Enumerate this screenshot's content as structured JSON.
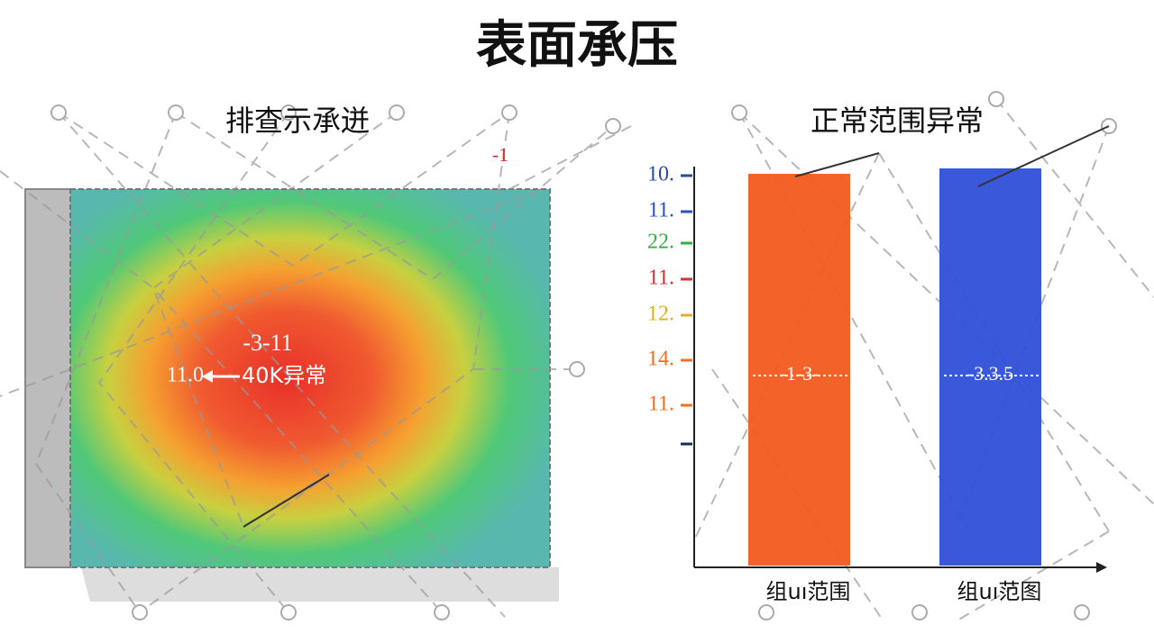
{
  "title": "表面承压",
  "heatmap": {
    "title": "排查示承迸",
    "labels": [
      {
        "text": "-1",
        "color": "#d03020"
      },
      {
        "text": "-3-11",
        "color": "#ffffff"
      },
      {
        "text": "11.0",
        "color": "#ffffff"
      },
      {
        "text": "40K异常",
        "color": "#ffffff"
      }
    ]
  },
  "bar_panel": {
    "title": "正常范围异常",
    "ticks": [
      {
        "label": "10.",
        "color": "#2a4aa0"
      },
      {
        "label": "11.",
        "color": "#2a50c8"
      },
      {
        "label": "22.",
        "color": "#30b040"
      },
      {
        "label": "11.",
        "color": "#d83030"
      },
      {
        "label": "12.",
        "color": "#e0b020"
      },
      {
        "label": "14.",
        "color": "#f07020"
      },
      {
        "label": "11.",
        "color": "#f07020"
      }
    ],
    "bars": [
      {
        "label": "-1-3-",
        "category": "组uı范围",
        "color": "#f25a1c"
      },
      {
        "label": "-3.3.5",
        "category": "组uı范图",
        "color": "#2e4fd8"
      }
    ]
  }
}
